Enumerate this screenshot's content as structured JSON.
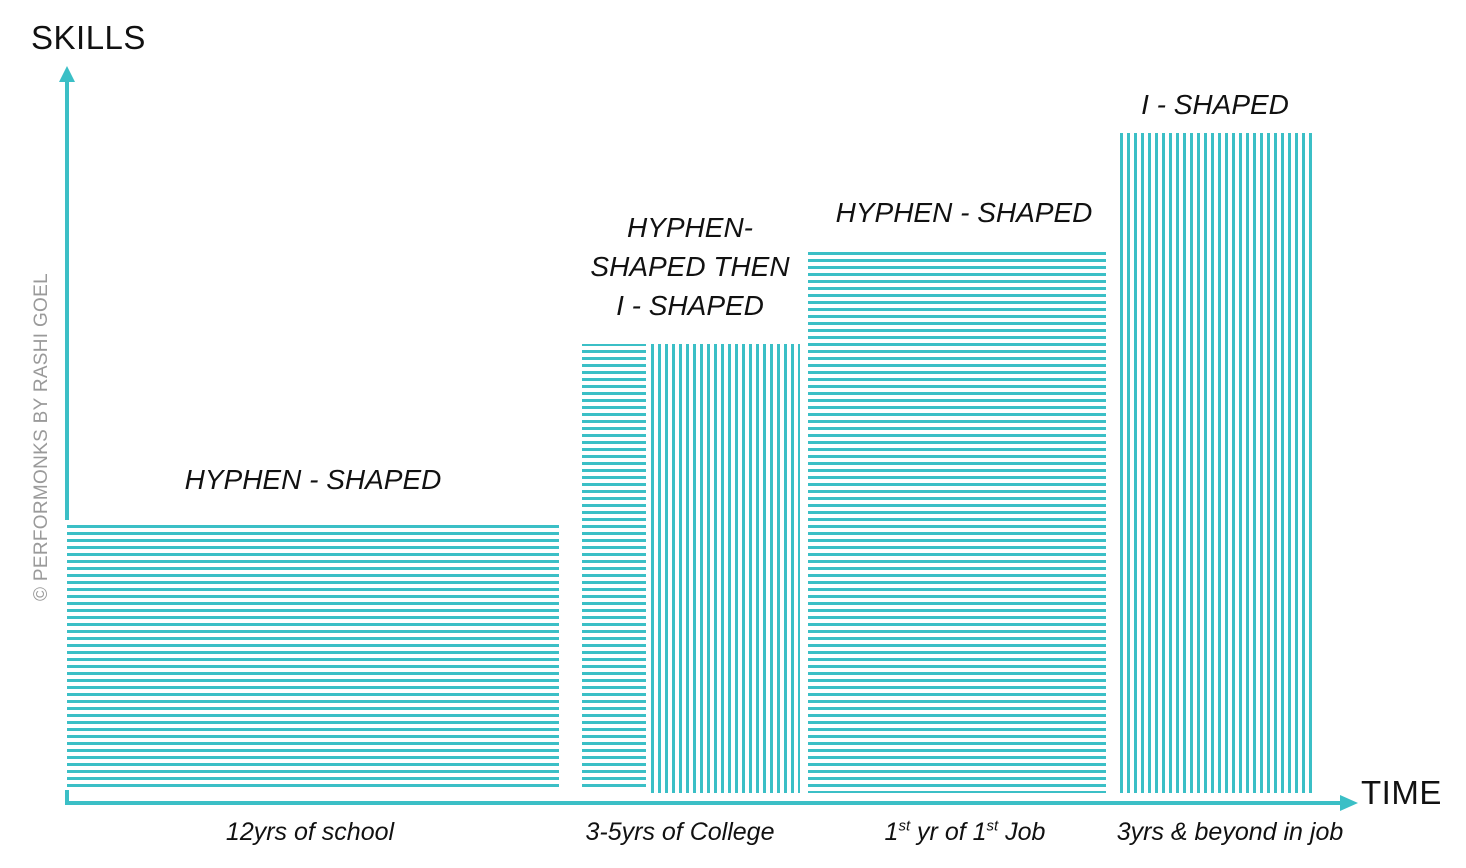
{
  "axes": {
    "y_label": "SKILLS",
    "x_label": "TIME"
  },
  "copyright": "© PERFORMONKS BY RASHI GOEL",
  "stages": [
    {
      "title_lines": [
        "HYPHEN - SHAPED"
      ],
      "period": "12yrs of school",
      "pattern": "horizontal",
      "skill_level": 0.41
    },
    {
      "title_lines": [
        "HYPHEN-",
        "SHAPED THEN",
        "I - SHAPED"
      ],
      "period": "3-5yrs of College",
      "pattern": "horizontal-then-vertical",
      "skill_level": 0.68
    },
    {
      "title_lines": [
        "HYPHEN - SHAPED"
      ],
      "period_parts": {
        "a": "1",
        "a_sup": "st",
        "b": " yr of 1",
        "b_sup": "st",
        "c": " Job"
      },
      "pattern": "horizontal",
      "skill_level": 0.82
    },
    {
      "title_lines": [
        "I - SHAPED"
      ],
      "period": "3yrs & beyond in job",
      "pattern": "vertical",
      "skill_level": 1.0
    }
  ],
  "colors": {
    "accent": "#3bbfc6",
    "text": "#111111",
    "muted": "#9a9a9a"
  }
}
